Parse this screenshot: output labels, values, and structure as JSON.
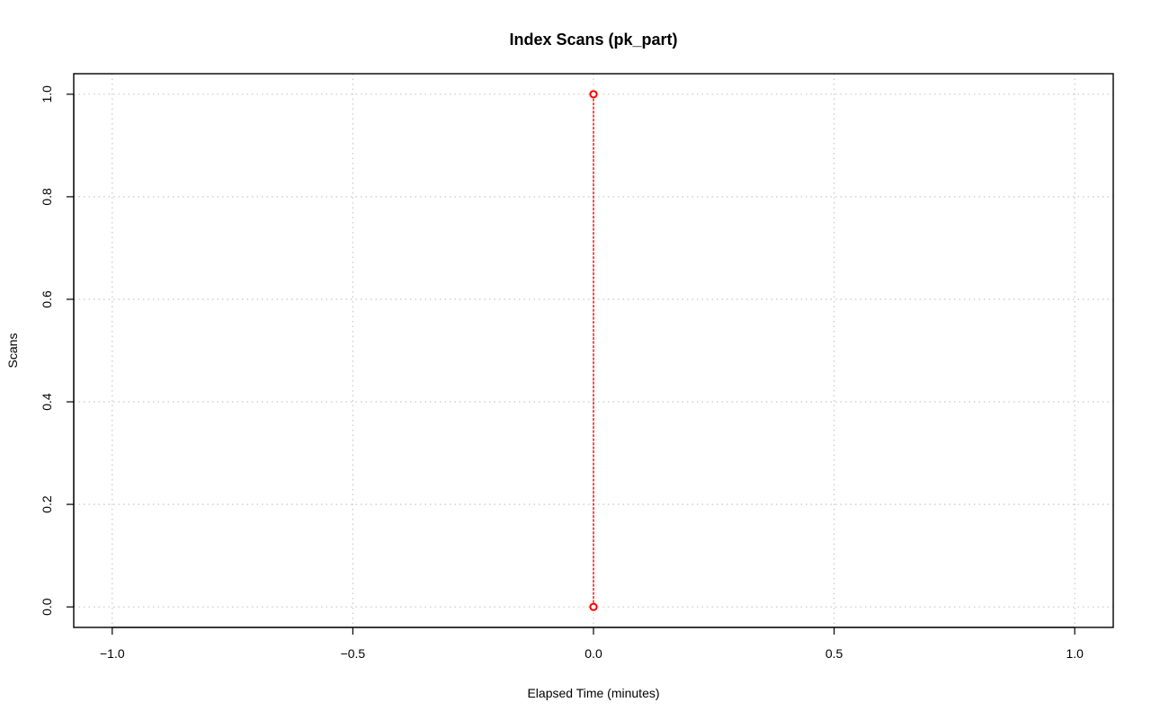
{
  "chart_data": {
    "type": "line",
    "title": "Index Scans (pk_part)",
    "xlabel": "Elapsed Time (minutes)",
    "ylabel": "Scans",
    "xlim": [
      -1.08,
      1.08
    ],
    "ylim": [
      -0.04,
      1.04
    ],
    "x_ticks": [
      -1.0,
      -0.5,
      0.0,
      0.5,
      1.0
    ],
    "x_tick_labels": [
      "−1.0",
      "−0.5",
      "0.0",
      "0.5",
      "1.0"
    ],
    "y_ticks": [
      0.0,
      0.2,
      0.4,
      0.6,
      0.8,
      1.0
    ],
    "y_tick_labels": [
      "0.0",
      "0.2",
      "0.4",
      "0.6",
      "0.8",
      "1.0"
    ],
    "grid": true,
    "series": [
      {
        "x": [
          0.0,
          0.0
        ],
        "y": [
          0.0,
          1.0
        ],
        "color": "#ff0000",
        "line_style": "dashed",
        "marker": "open-circle"
      }
    ]
  }
}
